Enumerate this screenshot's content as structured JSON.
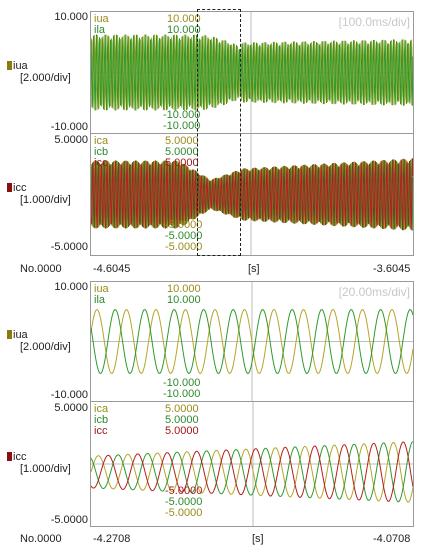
{
  "colors": {
    "iua": "#b5a52a",
    "ila": "#2e9a2e",
    "ica": "#b5a52a",
    "icb": "#2e9a2e",
    "icc": "#b51e1e",
    "axis_line": "#bdbdbd",
    "axis_text": "#c8c8c8"
  },
  "top_window": {
    "voltage": {
      "y_max": "10.000",
      "y_min": "-10.000",
      "channel_label": "iua",
      "scale_label": "[2.000/div]",
      "legend": [
        "iua",
        "ila"
      ],
      "legend_values_top": [
        "10.000",
        "10.000"
      ],
      "legend_values_bottom": [
        "-10.000",
        "-10.000"
      ],
      "time_div": "[100.0ms/div]"
    },
    "current": {
      "y_max": "5.0000",
      "y_min": "-5.0000",
      "channel_label": "icc",
      "scale_label": "[1.000/div]",
      "legend": [
        "ica",
        "icb",
        "icc"
      ],
      "legend_values_top": [
        "5.0000",
        "5.0000",
        "5.0000"
      ],
      "legend_values_bottom": [
        "-5.0000",
        "-5.0000",
        "-5.0000"
      ]
    },
    "footer": {
      "number": "No.0000",
      "x_start": "-4.6045",
      "unit": "[s]",
      "x_end": "-3.6045"
    }
  },
  "bottom_window": {
    "voltage": {
      "y_max": "10.000",
      "y_min": "-10.000",
      "channel_label": "iua",
      "scale_label": "[2.000/div]",
      "legend": [
        "iua",
        "ila"
      ],
      "legend_values_top": [
        "10.000",
        "10.000"
      ],
      "legend_values_bottom": [
        "-10.000",
        "-10.000"
      ],
      "time_div": "[20.00ms/div]"
    },
    "current": {
      "y_max": "5.0000",
      "y_min": "-5.0000",
      "channel_label": "icc",
      "scale_label": "[1.000/div]",
      "legend": [
        "ica",
        "icb",
        "icc"
      ],
      "legend_values_top": [
        "5.0000",
        "5.0000",
        "5.0000"
      ],
      "legend_values_bottom": [
        "-5.0000",
        "-5.0000",
        "-5.0000"
      ]
    },
    "footer": {
      "number": "No.0000",
      "x_start": "-4.2708",
      "unit": "[s]",
      "x_end": "-4.0708"
    }
  }
}
